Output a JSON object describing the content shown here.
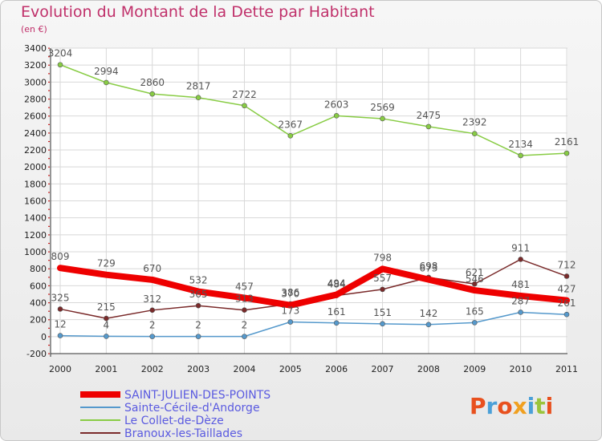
{
  "title": "Evolution du Montant de la Dette par Habitant",
  "subtitle": "(en €)",
  "logo": {
    "text": "Proxiti",
    "colors": [
      "#e8501e",
      "#4ba0d8",
      "#e8501e",
      "#f0a020",
      "#4ba0d8",
      "#9bc43c",
      "#e8501e"
    ]
  },
  "chart_data": {
    "type": "line",
    "x": [
      "2000",
      "2001",
      "2002",
      "2003",
      "2004",
      "2005",
      "2006",
      "2007",
      "2008",
      "2009",
      "2010",
      "2011"
    ],
    "ylim": [
      -200,
      3400
    ],
    "yticks": [
      -200,
      0,
      200,
      400,
      600,
      800,
      1000,
      1200,
      1400,
      1600,
      1800,
      2000,
      2200,
      2400,
      2600,
      2800,
      3000,
      3200,
      3400
    ],
    "grid": true,
    "legend_position": "bottom-left",
    "series": [
      {
        "name": "SAINT-JULIEN-DES-POINTS",
        "color": "#ee0000",
        "width": 8,
        "values": [
          809,
          729,
          670,
          532,
          457,
          370,
          494,
          798,
          673,
          546,
          481,
          427
        ]
      },
      {
        "name": "Sainte-Cécile-d'Andorge",
        "color": "#5599cc",
        "width": 1.5,
        "values": [
          12,
          4,
          2,
          2,
          2,
          173,
          161,
          151,
          142,
          165,
          287,
          261
        ]
      },
      {
        "name": "Le Collet-de-Dèze",
        "color": "#88cc44",
        "width": 1.5,
        "values": [
          3204,
          2994,
          2860,
          2817,
          2722,
          2367,
          2603,
          2569,
          2475,
          2392,
          2134,
          2161
        ]
      },
      {
        "name": "Branoux-les-Taillades",
        "color": "#7a2a2a",
        "width": 1.5,
        "values": [
          325,
          215,
          312,
          365,
          313,
          386,
          484,
          557,
          698,
          621,
          911,
          712
        ]
      }
    ]
  }
}
